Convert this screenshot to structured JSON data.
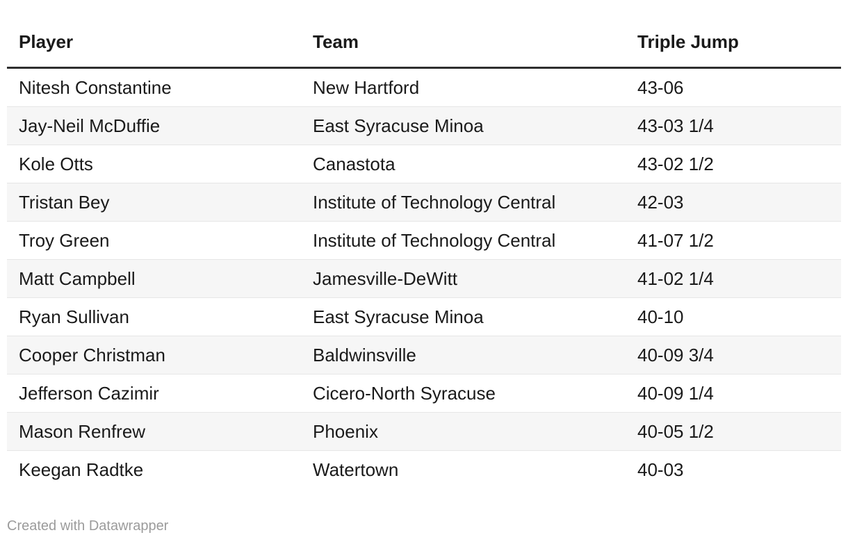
{
  "chart_data": {
    "type": "table",
    "columns": [
      "Player",
      "Team",
      "Triple Jump"
    ],
    "rows": [
      [
        "Nitesh Constantine",
        "New Hartford",
        "43-06"
      ],
      [
        "Jay-Neil McDuffie",
        "East Syracuse Minoa",
        "43-03 1/4"
      ],
      [
        "Kole Otts",
        "Canastota",
        "43-02 1/2"
      ],
      [
        "Tristan Bey",
        "Institute of Technology Central",
        "42-03"
      ],
      [
        "Troy Green",
        "Institute of Technology Central",
        "41-07 1/2"
      ],
      [
        "Matt Campbell",
        "Jamesville-DeWitt",
        "41-02 1/4"
      ],
      [
        "Ryan Sullivan",
        "East Syracuse Minoa",
        "40-10"
      ],
      [
        "Cooper Christman",
        "Baldwinsville",
        "40-09 3/4"
      ],
      [
        "Jefferson Cazimir",
        "Cicero-North Syracuse",
        "40-09 1/4"
      ],
      [
        "Mason Renfrew",
        "Phoenix",
        "40-05 1/2"
      ],
      [
        "Keegan Radtke",
        "Watertown",
        "40-03"
      ]
    ],
    "layout": {
      "striped_rows": true,
      "stripe_on_even_rows": true,
      "header_rule": true
    }
  },
  "footer": {
    "created_with": "Created with ",
    "attribution": "Datawrapper"
  },
  "colors": {
    "background": "#ffffff",
    "text": "#1a1a1a",
    "header_rule": "#2e2e2e",
    "row_stripe": "#f6f6f6",
    "row_separator": "#e6e6e6",
    "footer_text": "#9b9b9b"
  }
}
